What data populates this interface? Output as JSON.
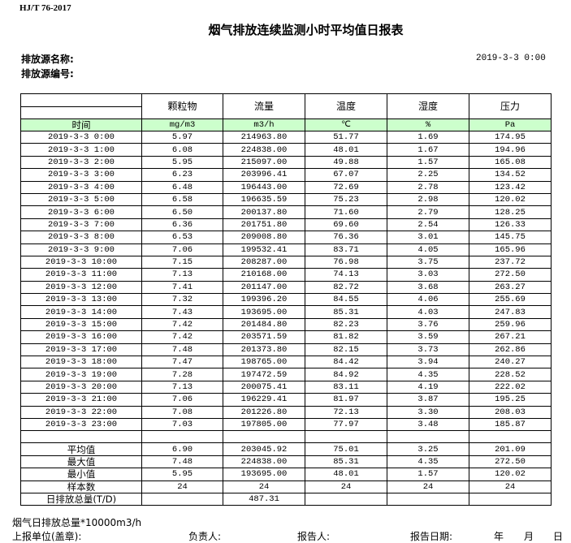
{
  "standard": "HJ/T  76-2017",
  "title": "烟气排放连续监测小时平均值日报表",
  "source_name_label": "排放源名称:",
  "source_no_label": "排放源编号:",
  "report_datetime": "2019-3-3  0:00",
  "columns": [
    "颗粒物",
    "流量",
    "温度",
    "湿度",
    "压力"
  ],
  "units": {
    "time": "时间",
    "values": [
      "mg/m3",
      "m3/h",
      "℃",
      "%",
      "Pa"
    ]
  },
  "rows": [
    [
      "2019-3-3 0:00",
      "5.97",
      "214963.80",
      "51.77",
      "1.69",
      "174.95"
    ],
    [
      "2019-3-3 1:00",
      "6.08",
      "224838.00",
      "48.01",
      "1.67",
      "194.96"
    ],
    [
      "2019-3-3 2:00",
      "5.95",
      "215097.00",
      "49.88",
      "1.57",
      "165.08"
    ],
    [
      "2019-3-3 3:00",
      "6.23",
      "203996.41",
      "67.07",
      "2.25",
      "134.52"
    ],
    [
      "2019-3-3 4:00",
      "6.48",
      "196443.00",
      "72.69",
      "2.78",
      "123.42"
    ],
    [
      "2019-3-3 5:00",
      "6.58",
      "196635.59",
      "75.23",
      "2.98",
      "120.02"
    ],
    [
      "2019-3-3 6:00",
      "6.50",
      "200137.80",
      "71.60",
      "2.79",
      "128.25"
    ],
    [
      "2019-3-3 7:00",
      "6.36",
      "201751.80",
      "69.60",
      "2.54",
      "126.33"
    ],
    [
      "2019-3-3 8:00",
      "6.53",
      "209008.80",
      "76.36",
      "3.01",
      "145.75"
    ],
    [
      "2019-3-3 9:00",
      "7.06",
      "199532.41",
      "83.71",
      "4.05",
      "165.96"
    ],
    [
      "2019-3-3 10:00",
      "7.15",
      "208287.00",
      "76.98",
      "3.75",
      "237.72"
    ],
    [
      "2019-3-3 11:00",
      "7.13",
      "210168.00",
      "74.13",
      "3.03",
      "272.50"
    ],
    [
      "2019-3-3 12:00",
      "7.41",
      "201147.00",
      "82.72",
      "3.68",
      "263.27"
    ],
    [
      "2019-3-3 13:00",
      "7.32",
      "199396.20",
      "84.55",
      "4.06",
      "255.69"
    ],
    [
      "2019-3-3 14:00",
      "7.43",
      "193695.00",
      "85.31",
      "4.03",
      "247.83"
    ],
    [
      "2019-3-3 15:00",
      "7.42",
      "201484.80",
      "82.23",
      "3.76",
      "259.96"
    ],
    [
      "2019-3-3 16:00",
      "7.42",
      "203571.59",
      "81.82",
      "3.59",
      "267.21"
    ],
    [
      "2019-3-3 17:00",
      "7.48",
      "201373.80",
      "82.15",
      "3.73",
      "262.86"
    ],
    [
      "2019-3-3 18:00",
      "7.47",
      "198765.00",
      "84.42",
      "3.94",
      "240.27"
    ],
    [
      "2019-3-3 19:00",
      "7.28",
      "197472.59",
      "84.92",
      "4.35",
      "228.52"
    ],
    [
      "2019-3-3 20:00",
      "7.13",
      "200075.41",
      "83.11",
      "4.19",
      "222.02"
    ],
    [
      "2019-3-3 21:00",
      "7.06",
      "196229.41",
      "81.97",
      "3.87",
      "195.25"
    ],
    [
      "2019-3-3 22:00",
      "7.08",
      "201226.80",
      "72.13",
      "3.30",
      "208.03"
    ],
    [
      "2019-3-3 23:00",
      "7.03",
      "197805.00",
      "77.97",
      "3.48",
      "185.87"
    ]
  ],
  "stats": [
    [
      "平均值",
      "6.90",
      "203045.92",
      "75.01",
      "3.25",
      "201.09"
    ],
    [
      "最大值",
      "7.48",
      "224838.00",
      "85.31",
      "4.35",
      "272.50"
    ],
    [
      "最小值",
      "5.95",
      "193695.00",
      "48.01",
      "1.57",
      "120.02"
    ],
    [
      "样本数",
      "24",
      "24",
      "24",
      "24",
      "24"
    ],
    [
      "日排放总量(T/D)",
      "",
      "487.31",
      "",
      "",
      ""
    ]
  ],
  "footer": {
    "note": "烟气日排放总量*10000m3/h",
    "unit_label": "上报单位(盖章):",
    "person_label": "负责人:",
    "reporter_label": "报告人:",
    "date_label": "报告日期:",
    "year": "年",
    "month": "月",
    "day": "日"
  }
}
